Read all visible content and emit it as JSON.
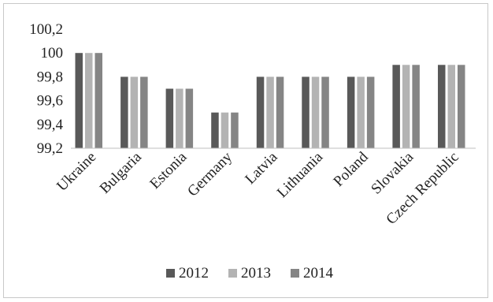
{
  "chart_data": {
    "type": "bar",
    "title": "",
    "xlabel": "",
    "ylabel": "",
    "categories": [
      "Ukraine",
      "Bulgaria",
      "Estonia",
      "Germany",
      "Latvia",
      "Lithuania",
      "Poland",
      "Slovakia",
      "Czech Republic"
    ],
    "series": [
      {
        "name": "2012",
        "color": "#595959",
        "values": [
          100,
          99.8,
          99.7,
          99.5,
          99.8,
          99.8,
          99.8,
          99.9,
          99.9
        ]
      },
      {
        "name": "2013",
        "color": "#b3b3b3",
        "values": [
          100,
          99.8,
          99.7,
          99.5,
          99.8,
          99.8,
          99.8,
          99.9,
          99.9
        ]
      },
      {
        "name": "2014",
        "color": "#858585",
        "values": [
          100,
          99.8,
          99.7,
          99.5,
          99.8,
          99.8,
          99.8,
          99.9,
          99.9
        ]
      }
    ],
    "ylim": [
      99.2,
      100.2
    ],
    "yticks": [
      "99,2",
      "99,4",
      "99,6",
      "99,8",
      "100",
      "100,2"
    ],
    "grid": false,
    "legend_position": "bottom"
  }
}
